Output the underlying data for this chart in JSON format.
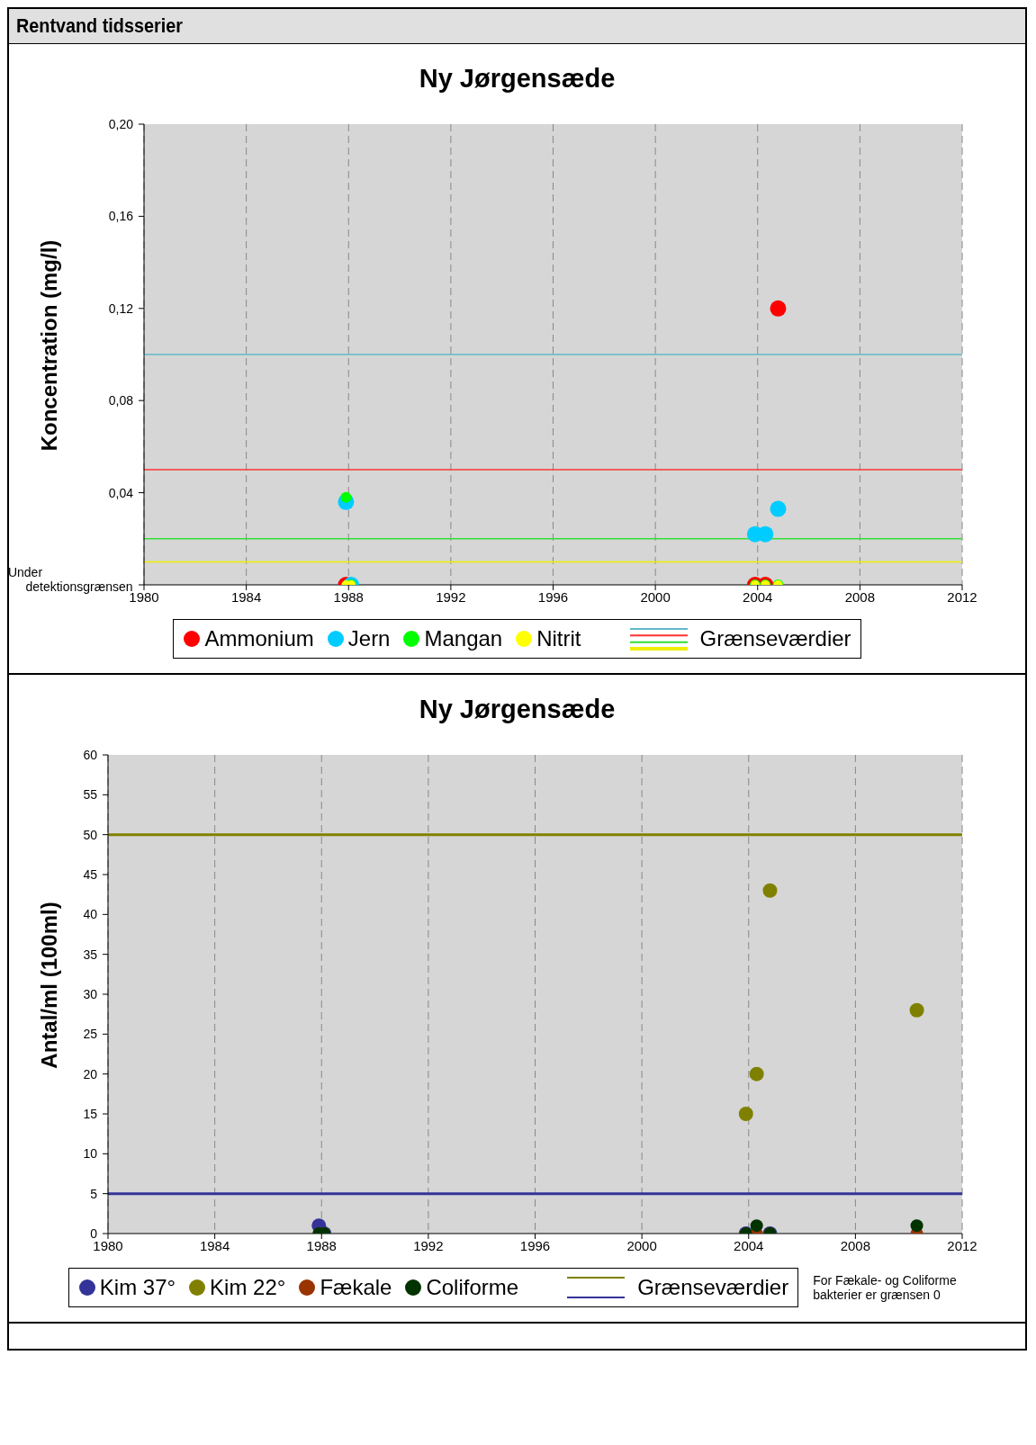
{
  "chart_data": [
    {
      "type": "scatter",
      "title": "Ny Jørgensæde",
      "ylabel": "Koncentration (mg/l)",
      "annotations": [
        "Rentvand tidsserier"
      ],
      "xlim": [
        1980,
        2012
      ],
      "xticks": [
        1980,
        1984,
        1988,
        1992,
        1996,
        2000,
        2004,
        2008,
        2012
      ],
      "ylim": [
        0,
        0.2
      ],
      "yticks": [
        {
          "value": 0,
          "label": "Under detektionsgrænsen"
        },
        {
          "value": 0.04,
          "label": "0,04"
        },
        {
          "value": 0.08,
          "label": "0,08"
        },
        {
          "value": 0.12,
          "label": "0,12"
        },
        {
          "value": 0.16,
          "label": "0,16"
        },
        {
          "value": 0.2,
          "label": "0,20"
        }
      ],
      "grid": "x",
      "legend": "bottom",
      "marker": "circle",
      "series": [
        {
          "name": "Ammonium",
          "color": "#ff0000",
          "x": [
            1987.9,
            2003.9,
            2004.3,
            2004.8
          ],
          "values": [
            0,
            0,
            0,
            0.12
          ]
        },
        {
          "name": "Jern",
          "color": "#00ccff",
          "x": [
            1987.9,
            1988.1,
            2003.9,
            2004.3,
            2004.8
          ],
          "values": [
            0.036,
            0,
            0.022,
            0.022,
            0.033
          ]
        },
        {
          "name": "Mangan",
          "color": "#00ff00",
          "x": [
            1987.9,
            1988.1,
            2003.9,
            2004.3,
            2004.8
          ],
          "values": [
            0.038,
            0,
            0,
            0,
            0
          ]
        },
        {
          "name": "Nitrit",
          "color": "#ffff00",
          "x": [
            1987.9,
            1988.1,
            2003.9,
            2004.3,
            2004.8
          ],
          "values": [
            0,
            0,
            0,
            0,
            0
          ]
        }
      ],
      "ref_lines": [
        {
          "axis": "y",
          "value": 0.1,
          "label": "Grænseværdier",
          "color": "#5fb8c8"
        },
        {
          "axis": "y",
          "value": 0.05,
          "color": "#ff3333"
        },
        {
          "axis": "y",
          "value": 0.02,
          "color": "#33dd33"
        },
        {
          "axis": "y",
          "value": 0.01,
          "color": "#eeee00"
        }
      ]
    },
    {
      "type": "scatter",
      "title": "Ny Jørgensæde",
      "ylabel": "Antal/ml (100ml)",
      "annotations": [
        "For Fækale- og Coliforme bakterier er grænsen 0"
      ],
      "xlim": [
        1980,
        2012
      ],
      "xticks": [
        1980,
        1984,
        1988,
        1992,
        1996,
        2000,
        2004,
        2008,
        2012
      ],
      "ylim": [
        0,
        60
      ],
      "yticks": [
        0,
        5,
        10,
        15,
        20,
        25,
        30,
        35,
        40,
        45,
        50,
        55,
        60
      ],
      "grid": "x",
      "legend": "bottom",
      "marker": "circle",
      "series": [
        {
          "name": "Kim 37°",
          "color": "#333399",
          "x": [
            1987.9,
            1988.1,
            2003.9,
            2004.8
          ],
          "values": [
            1,
            0,
            0,
            0
          ]
        },
        {
          "name": "Kim 22°",
          "color": "#808000",
          "x": [
            2003.9,
            2004.3,
            2004.8,
            2010.3
          ],
          "values": [
            15,
            20,
            43,
            28
          ]
        },
        {
          "name": "Fækale",
          "color": "#993300",
          "x": [
            1987.9,
            1988.1,
            2003.9,
            2004.3,
            2004.8,
            2010.3
          ],
          "values": [
            0,
            0,
            0,
            0,
            0,
            0
          ]
        },
        {
          "name": "Coliforme",
          "color": "#003300",
          "x": [
            1987.9,
            1988.1,
            2003.9,
            2004.3,
            2004.8,
            2010.3
          ],
          "values": [
            0,
            0,
            0,
            1,
            0,
            1
          ]
        }
      ],
      "ref_lines": [
        {
          "axis": "y",
          "value": 50,
          "label": "Grænseværdier",
          "color": "#808000"
        },
        {
          "axis": "y",
          "value": 5,
          "color": "#333399"
        }
      ]
    }
  ]
}
